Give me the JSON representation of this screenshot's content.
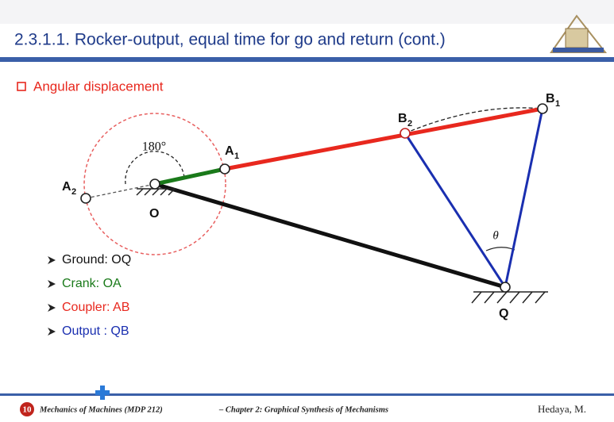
{
  "header": {
    "title": "2.3.1.1. Rocker-output, equal time for go and return (cont.)"
  },
  "section": {
    "heading": "Angular displacement"
  },
  "diagram": {
    "angle_label": "180°",
    "theta_label": "θ",
    "points": {
      "O": {
        "label": "O"
      },
      "Q": {
        "label": "Q"
      },
      "A1": {
        "label": "A",
        "sub": "1"
      },
      "A2": {
        "label": "A",
        "sub": "2"
      },
      "B1": {
        "label": "B",
        "sub": "1"
      },
      "B2": {
        "label": "B",
        "sub": "2"
      }
    }
  },
  "legend": [
    {
      "text": "Ground: OQ",
      "color": "#111111"
    },
    {
      "text": "Crank: OA",
      "color": "#1a7a1a"
    },
    {
      "text": "Coupler: AB",
      "color": "#e8281e"
    },
    {
      "text": "Output : QB",
      "color": "#1a2fb0"
    }
  ],
  "footer": {
    "page": "10",
    "course": "Mechanics of Machines (MDP 212)",
    "chapter": "– Chapter 2: Graphical Synthesis of Mechanisms",
    "author": "Hedaya, M."
  }
}
